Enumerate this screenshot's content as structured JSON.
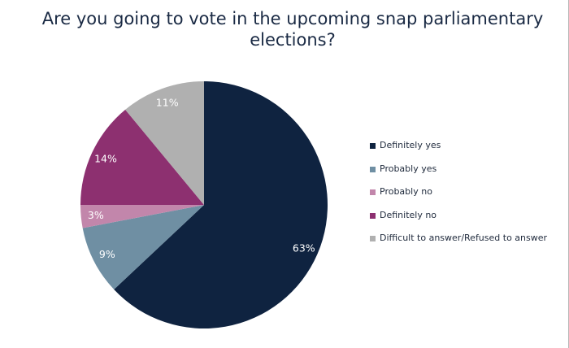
{
  "chart_data": {
    "type": "pie",
    "title": "Are you going to vote in the upcoming snap parliamentary elections?",
    "legend_position": "right",
    "slices": [
      {
        "label": "Definitely yes",
        "value": 63,
        "display": "63%",
        "color": "#0f2340"
      },
      {
        "label": "Probably yes",
        "value": 9,
        "display": "9%",
        "color": "#6f8fa3"
      },
      {
        "label": "Probably no",
        "value": 3,
        "display": "3%",
        "color": "#c286ab"
      },
      {
        "label": "Definitely no",
        "value": 14,
        "display": "14%",
        "color": "#8d3070"
      },
      {
        "label": "Difficult to answer/Refused to answer",
        "value": 11,
        "display": "11%",
        "color": "#b0b0b0"
      }
    ]
  }
}
